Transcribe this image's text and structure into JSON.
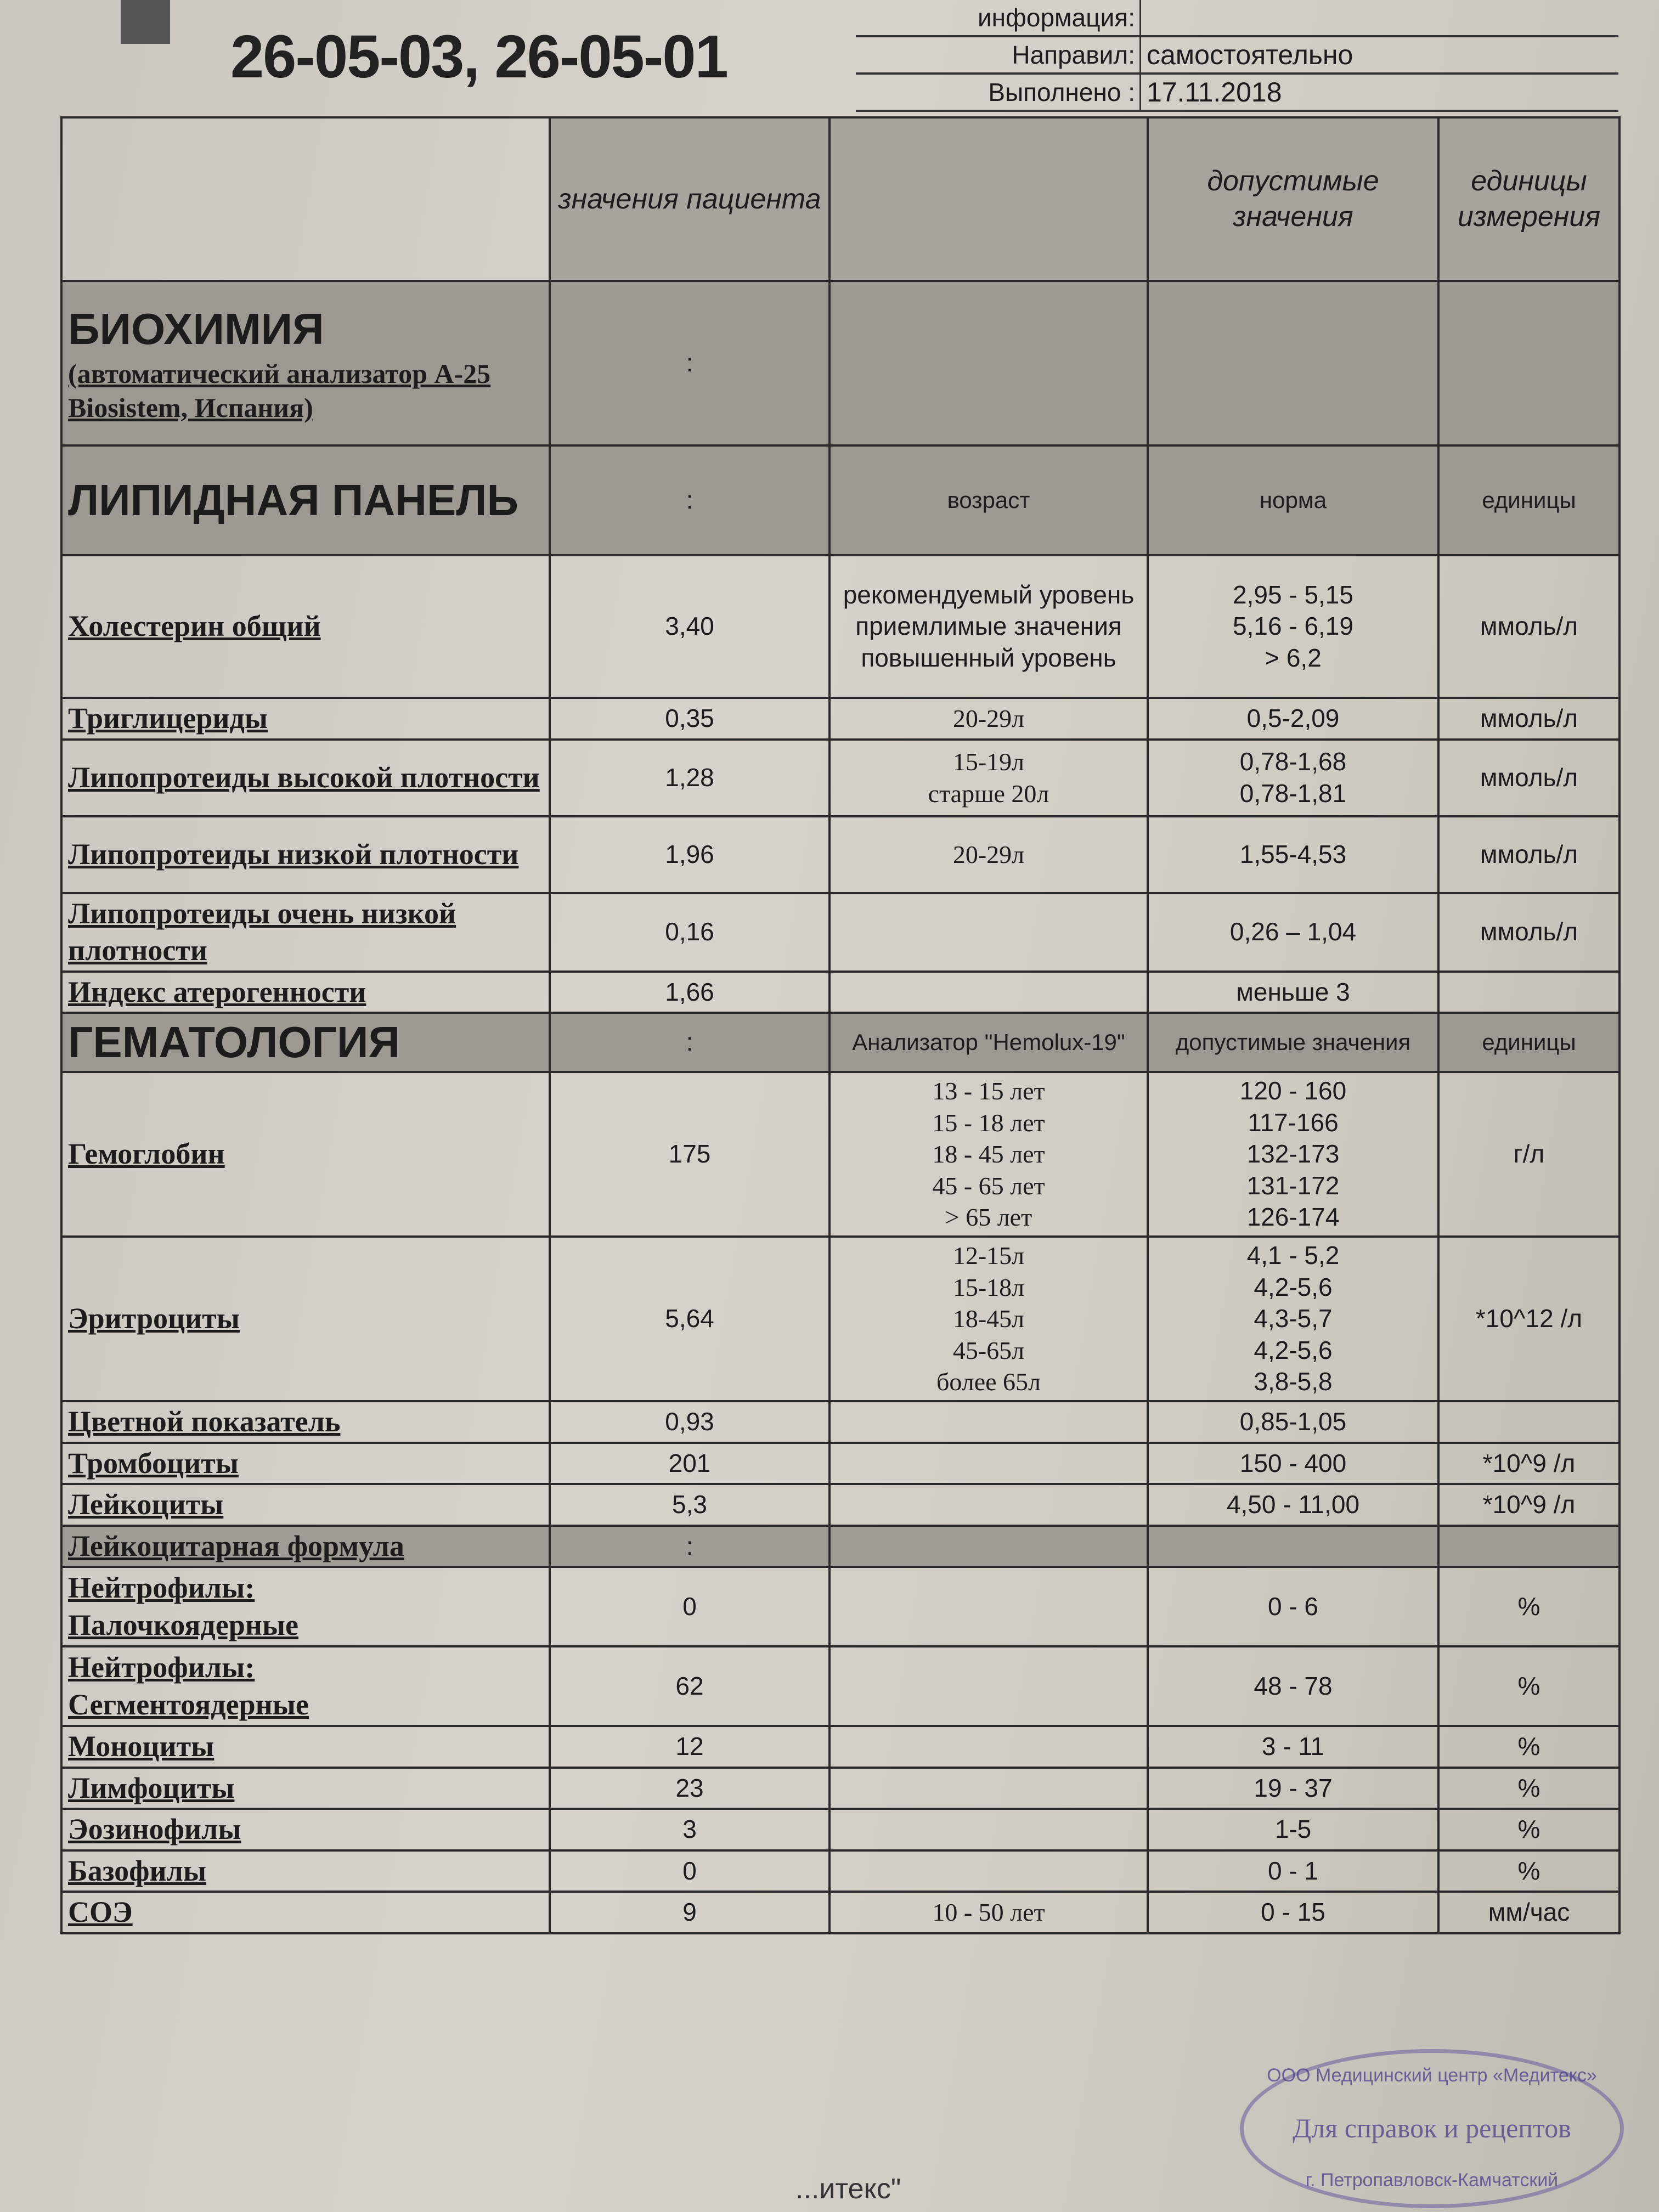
{
  "header": {
    "ids": "26-05-03, 26-05-01",
    "info_label": "информация:",
    "info_value": "",
    "referred_label": "Направил:",
    "referred_value": "самостоятельно",
    "done_label": "Выполнено :",
    "done_value": "17.11.2018"
  },
  "columns": {
    "patient": "значения пациента",
    "allowed": "допустимые значения",
    "units": "единицы измерения"
  },
  "rows": [
    {
      "type": "section",
      "label": "БИОХИМИЯ",
      "sub": "(автоматический анализатор A-25 Biosistem, Испания)",
      "value": ":",
      "age": "",
      "norm": "",
      "unit": ""
    },
    {
      "type": "section",
      "label": "ЛИПИДНАЯ ПАНЕЛЬ",
      "value": ":",
      "age": "возраст",
      "norm": "норма",
      "unit": "единицы"
    },
    {
      "label": "Холестерин общий",
      "value": "3,40",
      "age": "рекомендуемый уровень\nприемлимые значения\nповышенный уровень",
      "norm": "2,95 - 5,15\n5,16 - 6,19\n> 6,2",
      "unit": "ммоль/л"
    },
    {
      "label": "Триглицериды",
      "value": "0,35",
      "age": "20-29л",
      "norm": "0,5-2,09",
      "unit": "ммоль/л"
    },
    {
      "label": "Липопротеиды высокой плотности",
      "value": "1,28",
      "age": "15-19л\nстарше 20л",
      "norm": "0,78-1,68\n0,78-1,81",
      "unit": "ммоль/л"
    },
    {
      "label": "Липопротеиды низкой плотности",
      "value": "1,96",
      "age": "20-29л",
      "norm": "1,55-4,53",
      "unit": "ммоль/л"
    },
    {
      "label": "Липопротеиды очень низкой плотности",
      "value": "0,16",
      "age": "",
      "norm": "0,26 – 1,04",
      "unit": "ммоль/л"
    },
    {
      "label": "Индекс атерогенности",
      "value": "1,66",
      "age": "",
      "norm": "меньше 3",
      "unit": ""
    },
    {
      "type": "section",
      "label": "ГЕМАТОЛОГИЯ",
      "value": ":",
      "age": "Анализатор \"Hemolux-19\"",
      "norm": "допустимые значения",
      "unit": "единицы"
    },
    {
      "label": "Гемоглобин",
      "value": "175",
      "age": "13 - 15 лет\n15 - 18 лет\n18 - 45 лет\n45 - 65 лет\n> 65 лет",
      "norm": "120 - 160\n117-166\n132-173\n131-172\n126-174",
      "unit": "г/л"
    },
    {
      "label": "Эритроциты",
      "value": "5,64",
      "age": "12-15л\n15-18л\n18-45л\n45-65л\nболее 65л",
      "norm": "4,1 - 5,2\n4,2-5,6\n4,3-5,7\n4,2-5,6\n3,8-5,8",
      "unit": "*10^12 /л"
    },
    {
      "label": "Цветной показатель",
      "value": "0,93",
      "age": "",
      "norm": "0,85-1,05",
      "unit": ""
    },
    {
      "label": "Тромбоциты",
      "value": "201",
      "age": "",
      "norm": "150 - 400",
      "unit": "*10^9 /л"
    },
    {
      "label": "Лейкоциты",
      "value": "5,3",
      "age": "",
      "norm": "4,50 - 11,00",
      "unit": "*10^9 /л"
    },
    {
      "type": "gray",
      "label": "Лейкоцитарная формула",
      "value": ":",
      "age": "",
      "norm": "",
      "unit": ""
    },
    {
      "label": "Нейтрофилы:\nПалочкоядерные",
      "value": "0",
      "age": "",
      "norm": "0 - 6",
      "unit": "%"
    },
    {
      "label": "Нейтрофилы:\nСегментоядерные",
      "value": "62",
      "age": "",
      "norm": "48 - 78",
      "unit": "%"
    },
    {
      "label": "Моноциты",
      "value": "12",
      "age": "",
      "norm": "3 - 11",
      "unit": "%"
    },
    {
      "label": "Лимфоциты",
      "value": "23",
      "age": "",
      "norm": "19 - 37",
      "unit": "%"
    },
    {
      "label": "Эозинофилы",
      "value": "3",
      "age": "",
      "norm": "1-5",
      "unit": "%"
    },
    {
      "label": "Базофилы",
      "value": "0",
      "age": "",
      "norm": "0 - 1",
      "unit": "%"
    },
    {
      "label": "СОЭ",
      "value": "9",
      "age": "10 - 50 лет",
      "norm": "0 - 15",
      "unit": "мм/час"
    }
  ],
  "stamp": {
    "center": "Для справок и рецептов",
    "ring_top": "ООО Медицинский центр «Медитекс»",
    "ring_bottom": "г. Петропавловск-Камчатский"
  },
  "footer_fragment": "...итекс\""
}
